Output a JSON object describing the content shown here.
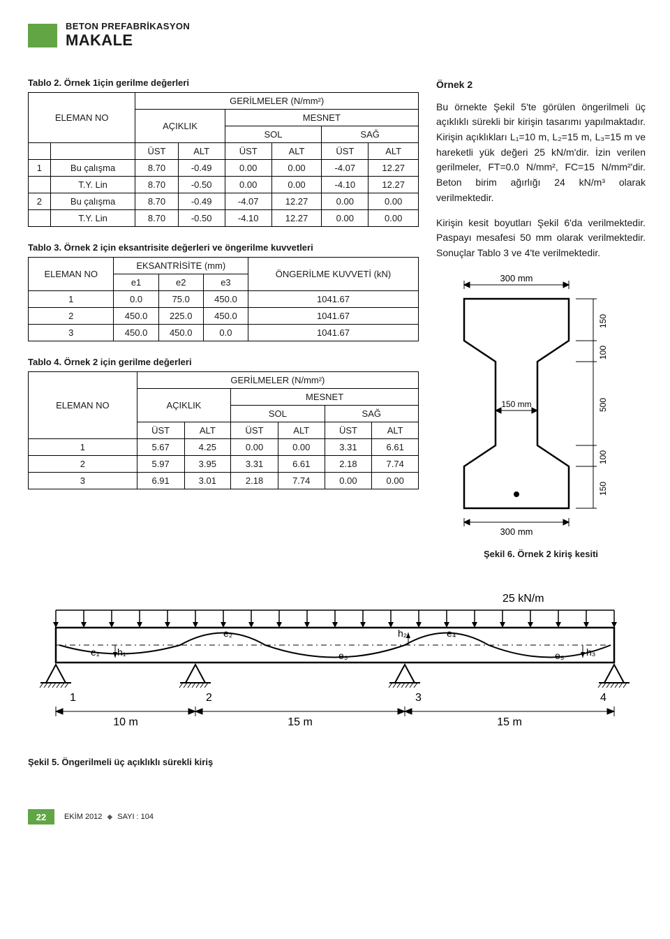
{
  "header": {
    "line1": "BETON PREFABRİKASYON",
    "line2": "MAKALE"
  },
  "table2": {
    "caption": "Tablo 2. Örnek 1için gerilme değerleri",
    "topHeader": "GERİLMELER (N/mm²)",
    "rowLabel": "ELEMAN NO",
    "subAciklik": "AÇIKLIK",
    "subMesnet": "MESNET",
    "subSol": "SOL",
    "subSag": "SAĞ",
    "ust": "ÜST",
    "alt": "ALT",
    "rows": [
      {
        "no": "1",
        "desc": "Bu çalışma",
        "v": [
          "8.70",
          "-0.49",
          "0.00",
          "0.00",
          "-4.07",
          "12.27"
        ]
      },
      {
        "no": "",
        "desc": "T.Y. Lin",
        "v": [
          "8.70",
          "-0.50",
          "0.00",
          "0.00",
          "-4.10",
          "12.27"
        ]
      },
      {
        "no": "2",
        "desc": "Bu çalışma",
        "v": [
          "8.70",
          "-0.49",
          "-4.07",
          "12.27",
          "0.00",
          "0.00"
        ]
      },
      {
        "no": "",
        "desc": "T.Y. Lin",
        "v": [
          "8.70",
          "-0.50",
          "-4.10",
          "12.27",
          "0.00",
          "0.00"
        ]
      }
    ]
  },
  "table3": {
    "caption": "Tablo 3. Örnek 2 için eksantrisite değerleri ve öngerilme kuvvetleri",
    "rowLabel": "ELEMAN NO",
    "eksHeader": "EKSANTRİSİTE (mm)",
    "e1": "e1",
    "e2": "e2",
    "e3": "e3",
    "ongerilme": "ÖNGERİLME KUVVETİ (kN)",
    "rows": [
      {
        "no": "1",
        "e1": "0.0",
        "e2": "75.0",
        "e3": "450.0",
        "f": "1041.67"
      },
      {
        "no": "2",
        "e1": "450.0",
        "e2": "225.0",
        "e3": "450.0",
        "f": "1041.67"
      },
      {
        "no": "3",
        "e1": "450.0",
        "e2": "450.0",
        "e3": "0.0",
        "f": "1041.67"
      }
    ]
  },
  "table4": {
    "caption": "Tablo 4. Örnek 2 için gerilme değerleri",
    "topHeader": "GERİLMELER (N/mm²)",
    "rowLabel": "ELEMAN NO",
    "subAciklik": "AÇIKLIK",
    "subMesnet": "MESNET",
    "subSol": "SOL",
    "subSag": "SAĞ",
    "ust": "ÜST",
    "alt": "ALT",
    "rows": [
      {
        "no": "1",
        "v": [
          "5.67",
          "4.25",
          "0.00",
          "0.00",
          "3.31",
          "6.61"
        ]
      },
      {
        "no": "2",
        "v": [
          "5.97",
          "3.95",
          "3.31",
          "6.61",
          "2.18",
          "7.74"
        ]
      },
      {
        "no": "3",
        "v": [
          "6.91",
          "3.01",
          "2.18",
          "7.74",
          "0.00",
          "0.00"
        ]
      }
    ]
  },
  "ex2": {
    "title": "Örnek 2",
    "p1": "Bu örnekte Şekil 5'te görülen öngerilmeli üç açıklıklı sürekli bir kirişin tasarımı yapılmaktadır. Kirişin açıklıkları L₁=10 m, L₂=15 m, L₃=15 m ve hareketli yük değeri 25 kN/m'dir. İzin verilen gerilmeler, FT=0.0 N/mm², FC=15 N/mm²'dir. Beton birim ağırlığı 24 kN/m³ olarak verilmektedir.",
    "p2": "Kirişin kesit boyutları Şekil 6'da verilmektedir. Paspayı mesafesi 50 mm olarak verilmektedir. Sonuçlar Tablo 3 ve 4'te verilmektedir."
  },
  "sekil6": {
    "caption": "Şekil 6. Örnek 2 kiriş kesiti",
    "dimTop": "300 mm",
    "dimBot": "300 mm",
    "dimLeft": "150 mm",
    "dimR1": "150",
    "dimR2": "100",
    "dimR3": "500",
    "dimR4": "100",
    "dimR5": "150"
  },
  "sekil5": {
    "caption": "Şekil 5. Öngerilmeli üç açıklıklı sürekli kiriş",
    "load": "25 kN/m",
    "spans": [
      "10 m",
      "15 m",
      "15 m"
    ],
    "supports": [
      "1",
      "2",
      "3",
      "4"
    ],
    "e": [
      "e₁",
      "e₂",
      "e₃",
      "e₄",
      "e₅"
    ],
    "h": [
      "h₁",
      "h₂",
      "h₃"
    ]
  },
  "footer": {
    "page": "22",
    "issue_month": "EKİM 2012",
    "issue_no": "SAYI : 104"
  }
}
